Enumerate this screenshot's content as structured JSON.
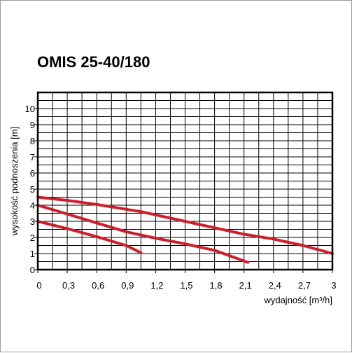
{
  "chart_data": {
    "type": "line",
    "title": "OMIS 25-40/180",
    "xlabel": "wydajność [m³/h]",
    "ylabel": "wysokość podnoszenia [m]",
    "xlim": [
      0,
      3
    ],
    "ylim": [
      0,
      11
    ],
    "x_ticks": [
      "0",
      "0,3",
      "0,6",
      "0,9",
      "1,2",
      "1,5",
      "1,8",
      "2,1",
      "2,4",
      "2,7",
      "3"
    ],
    "y_ticks": [
      "0",
      "1",
      "2",
      "3",
      "4",
      "5",
      "6",
      "7",
      "8",
      "9",
      "10"
    ],
    "grid": true,
    "series_color": "#cc1f2b",
    "series": [
      {
        "points": [
          [
            0,
            4.5
          ],
          [
            0.3,
            4.3
          ],
          [
            0.6,
            4.05
          ],
          [
            0.9,
            3.75
          ],
          [
            1.05,
            3.6
          ],
          [
            1.5,
            3.0
          ],
          [
            2.1,
            2.2
          ],
          [
            2.4,
            1.9
          ],
          [
            2.7,
            1.5
          ],
          [
            3.0,
            1.0
          ]
        ]
      },
      {
        "points": [
          [
            0,
            4.0
          ],
          [
            0.3,
            3.45
          ],
          [
            0.6,
            2.9
          ],
          [
            0.9,
            2.35
          ],
          [
            1.2,
            1.95
          ],
          [
            1.5,
            1.6
          ],
          [
            1.8,
            1.2
          ],
          [
            2.14,
            0.45
          ]
        ]
      },
      {
        "points": [
          [
            0,
            3.0
          ],
          [
            0.3,
            2.55
          ],
          [
            0.6,
            2.05
          ],
          [
            0.9,
            1.5
          ],
          [
            1.05,
            1.05
          ]
        ]
      }
    ]
  }
}
